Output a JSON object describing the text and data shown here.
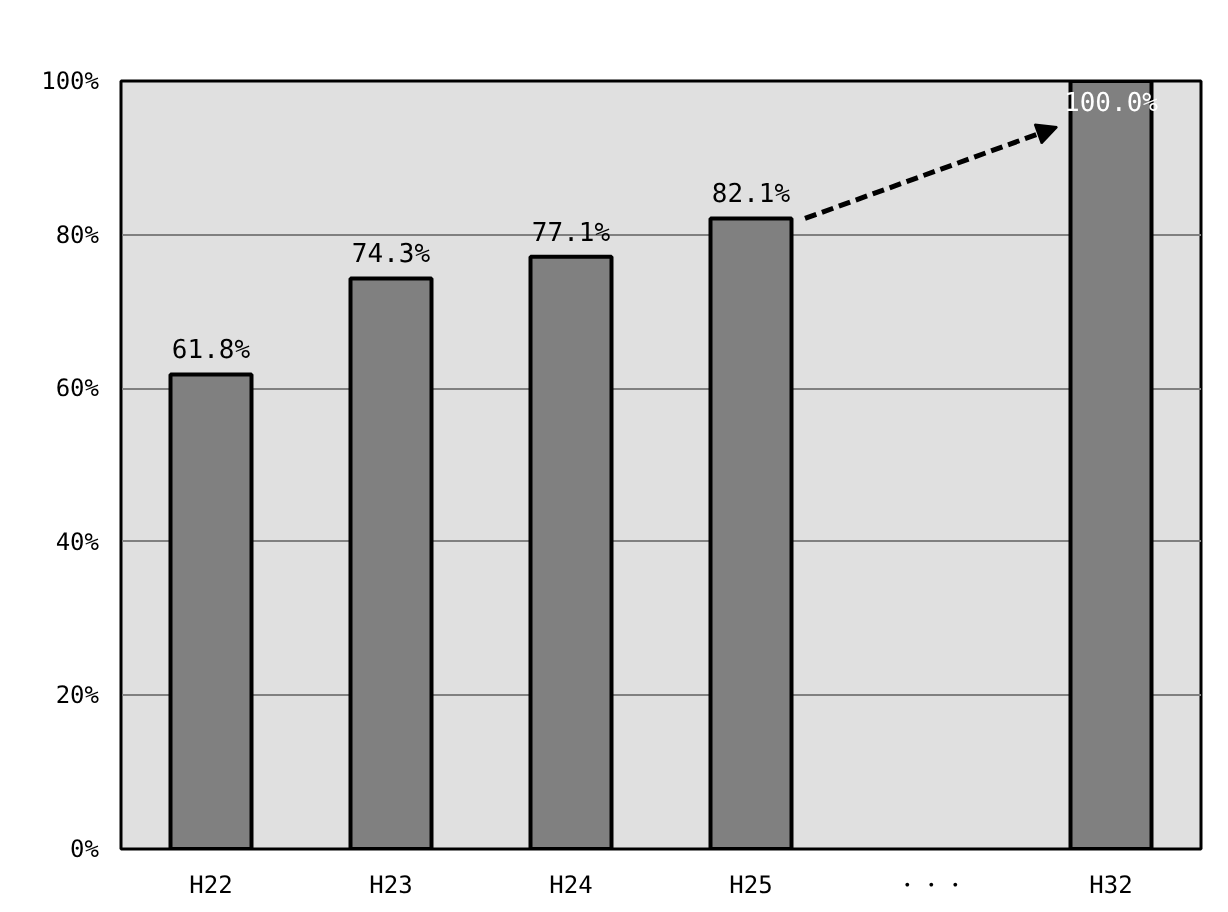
{
  "chart_data": {
    "type": "bar",
    "categories": [
      "H22",
      "H23",
      "H24",
      "H25",
      "・・・",
      "H32"
    ],
    "values": [
      61.8,
      74.3,
      77.1,
      82.1,
      null,
      100.0
    ],
    "value_labels": [
      "61.8%",
      "74.3%",
      "77.1%",
      "82.1%",
      null,
      "100.0%"
    ],
    "color": "#808080",
    "ylim": [
      0,
      100
    ],
    "yticks": [
      {
        "value": 0,
        "label": "0%"
      },
      {
        "value": 20,
        "label": "20%"
      },
      {
        "value": 40,
        "label": "40%"
      },
      {
        "value": 60,
        "label": "60%"
      },
      {
        "value": 80,
        "label": "80%"
      },
      {
        "value": 100,
        "label": "100%"
      }
    ],
    "grid": "y"
  }
}
